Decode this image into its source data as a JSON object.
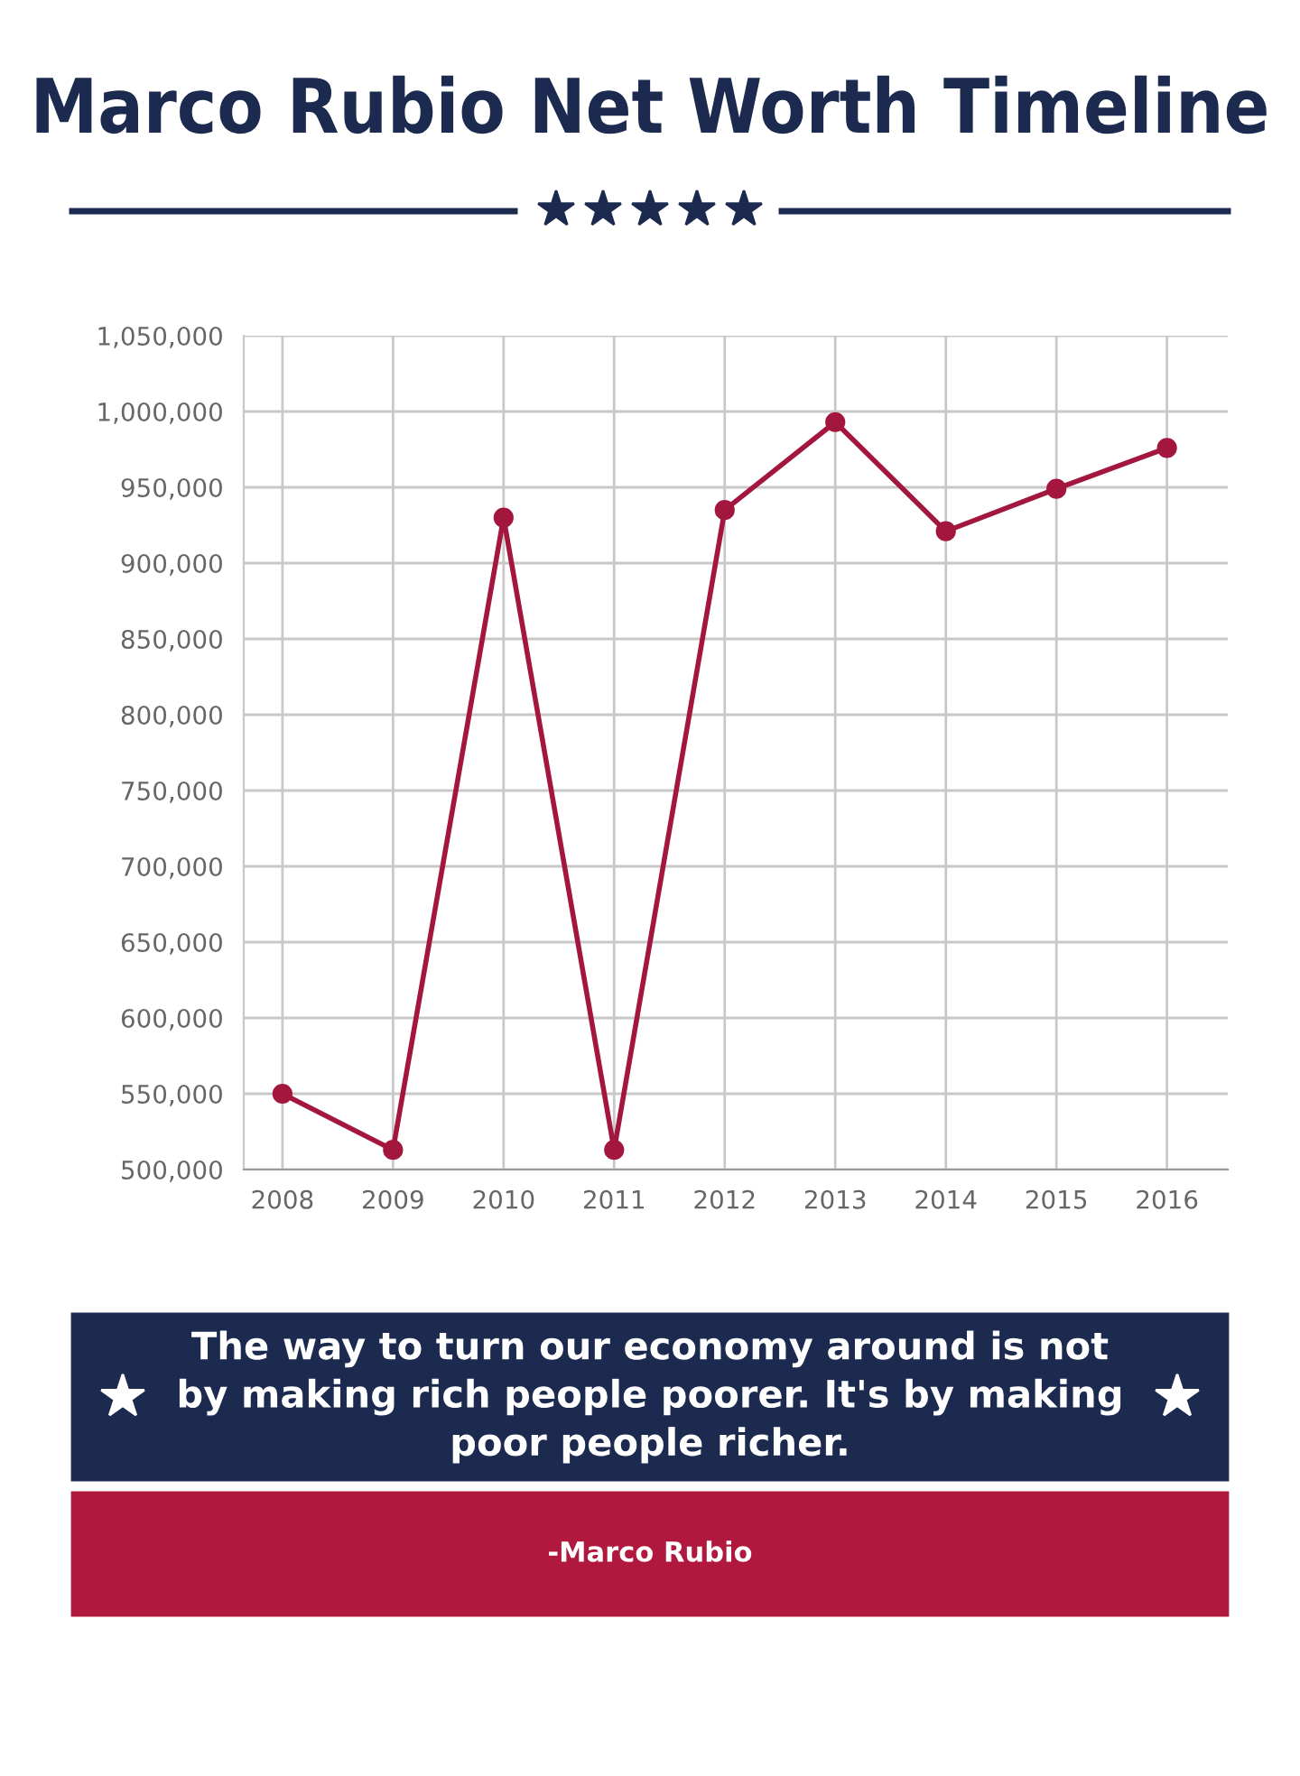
{
  "chart_data": {
    "type": "line",
    "title": "Marco Rubio Net Worth Timeline",
    "categories": [
      "2008",
      "2009",
      "2010",
      "2011",
      "2012",
      "2013",
      "2014",
      "2015",
      "2016"
    ],
    "series": [
      {
        "color": "#a3173f",
        "values": [
          550000,
          513000,
          930000,
          513000,
          935000,
          993000,
          921000,
          949000,
          976000
        ]
      }
    ],
    "ylim": [
      500000,
      1050000
    ],
    "yticks": [
      {
        "value": 500000,
        "label": "500,000"
      },
      {
        "value": 550000,
        "label": "550,000"
      },
      {
        "value": 600000,
        "label": "600,000"
      },
      {
        "value": 650000,
        "label": "650,000"
      },
      {
        "value": 700000,
        "label": "700,000"
      },
      {
        "value": 750000,
        "label": "750,000"
      },
      {
        "value": 800000,
        "label": "800,000"
      },
      {
        "value": 850000,
        "label": "850,000"
      },
      {
        "value": 900000,
        "label": "900,000"
      },
      {
        "value": 950000,
        "label": "950,000"
      },
      {
        "value": 1000000,
        "label": "1,000,000"
      },
      {
        "value": 1050000,
        "label": "1,050,000"
      }
    ],
    "grid": true,
    "marker": "circle",
    "line_style": "solid",
    "annotations": [
      "The way to turn our economy around is not by making rich people poorer. It's by making poor people richer.",
      "-Marco Rubio"
    ]
  }
}
